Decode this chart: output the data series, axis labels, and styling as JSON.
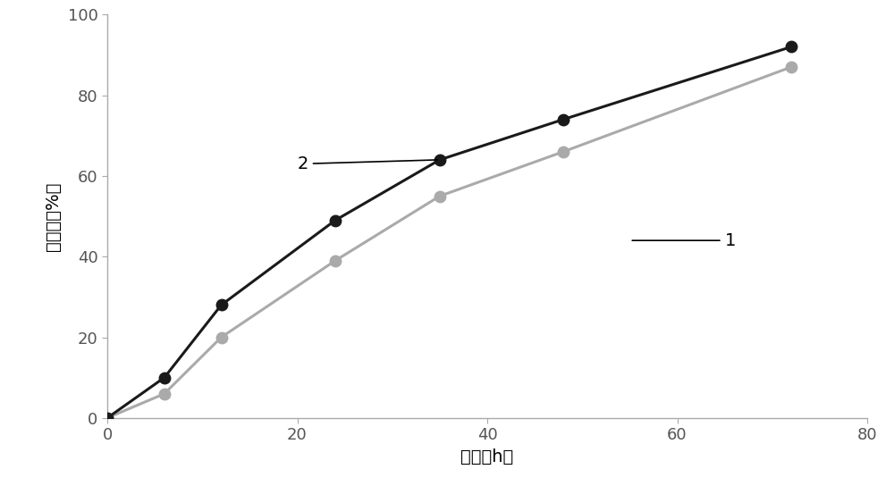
{
  "curve2_x": [
    0,
    6,
    12,
    24,
    35,
    48,
    72
  ],
  "curve2_y": [
    0,
    10,
    28,
    49,
    64,
    74,
    92
  ],
  "curve1_x": [
    0,
    6,
    12,
    24,
    35,
    48,
    72
  ],
  "curve1_y": [
    0,
    6,
    20,
    39,
    55,
    66,
    87
  ],
  "curve2_color": "#1a1a1a",
  "curve1_color": "#aaaaaa",
  "xlabel": "时间（h）",
  "ylabel": "溢出度（%）",
  "xlim": [
    0,
    80
  ],
  "ylim": [
    0,
    100
  ],
  "xticks": [
    0,
    20,
    40,
    60,
    80
  ],
  "yticks": [
    0,
    20,
    40,
    60,
    80,
    100
  ],
  "label2": "2",
  "label1": "1",
  "background_color": "#ffffff",
  "line_width": 2.2,
  "marker_size": 9,
  "spine_color": "#aaaaaa",
  "tick_color": "#555555",
  "annotation_fontsize": 14
}
